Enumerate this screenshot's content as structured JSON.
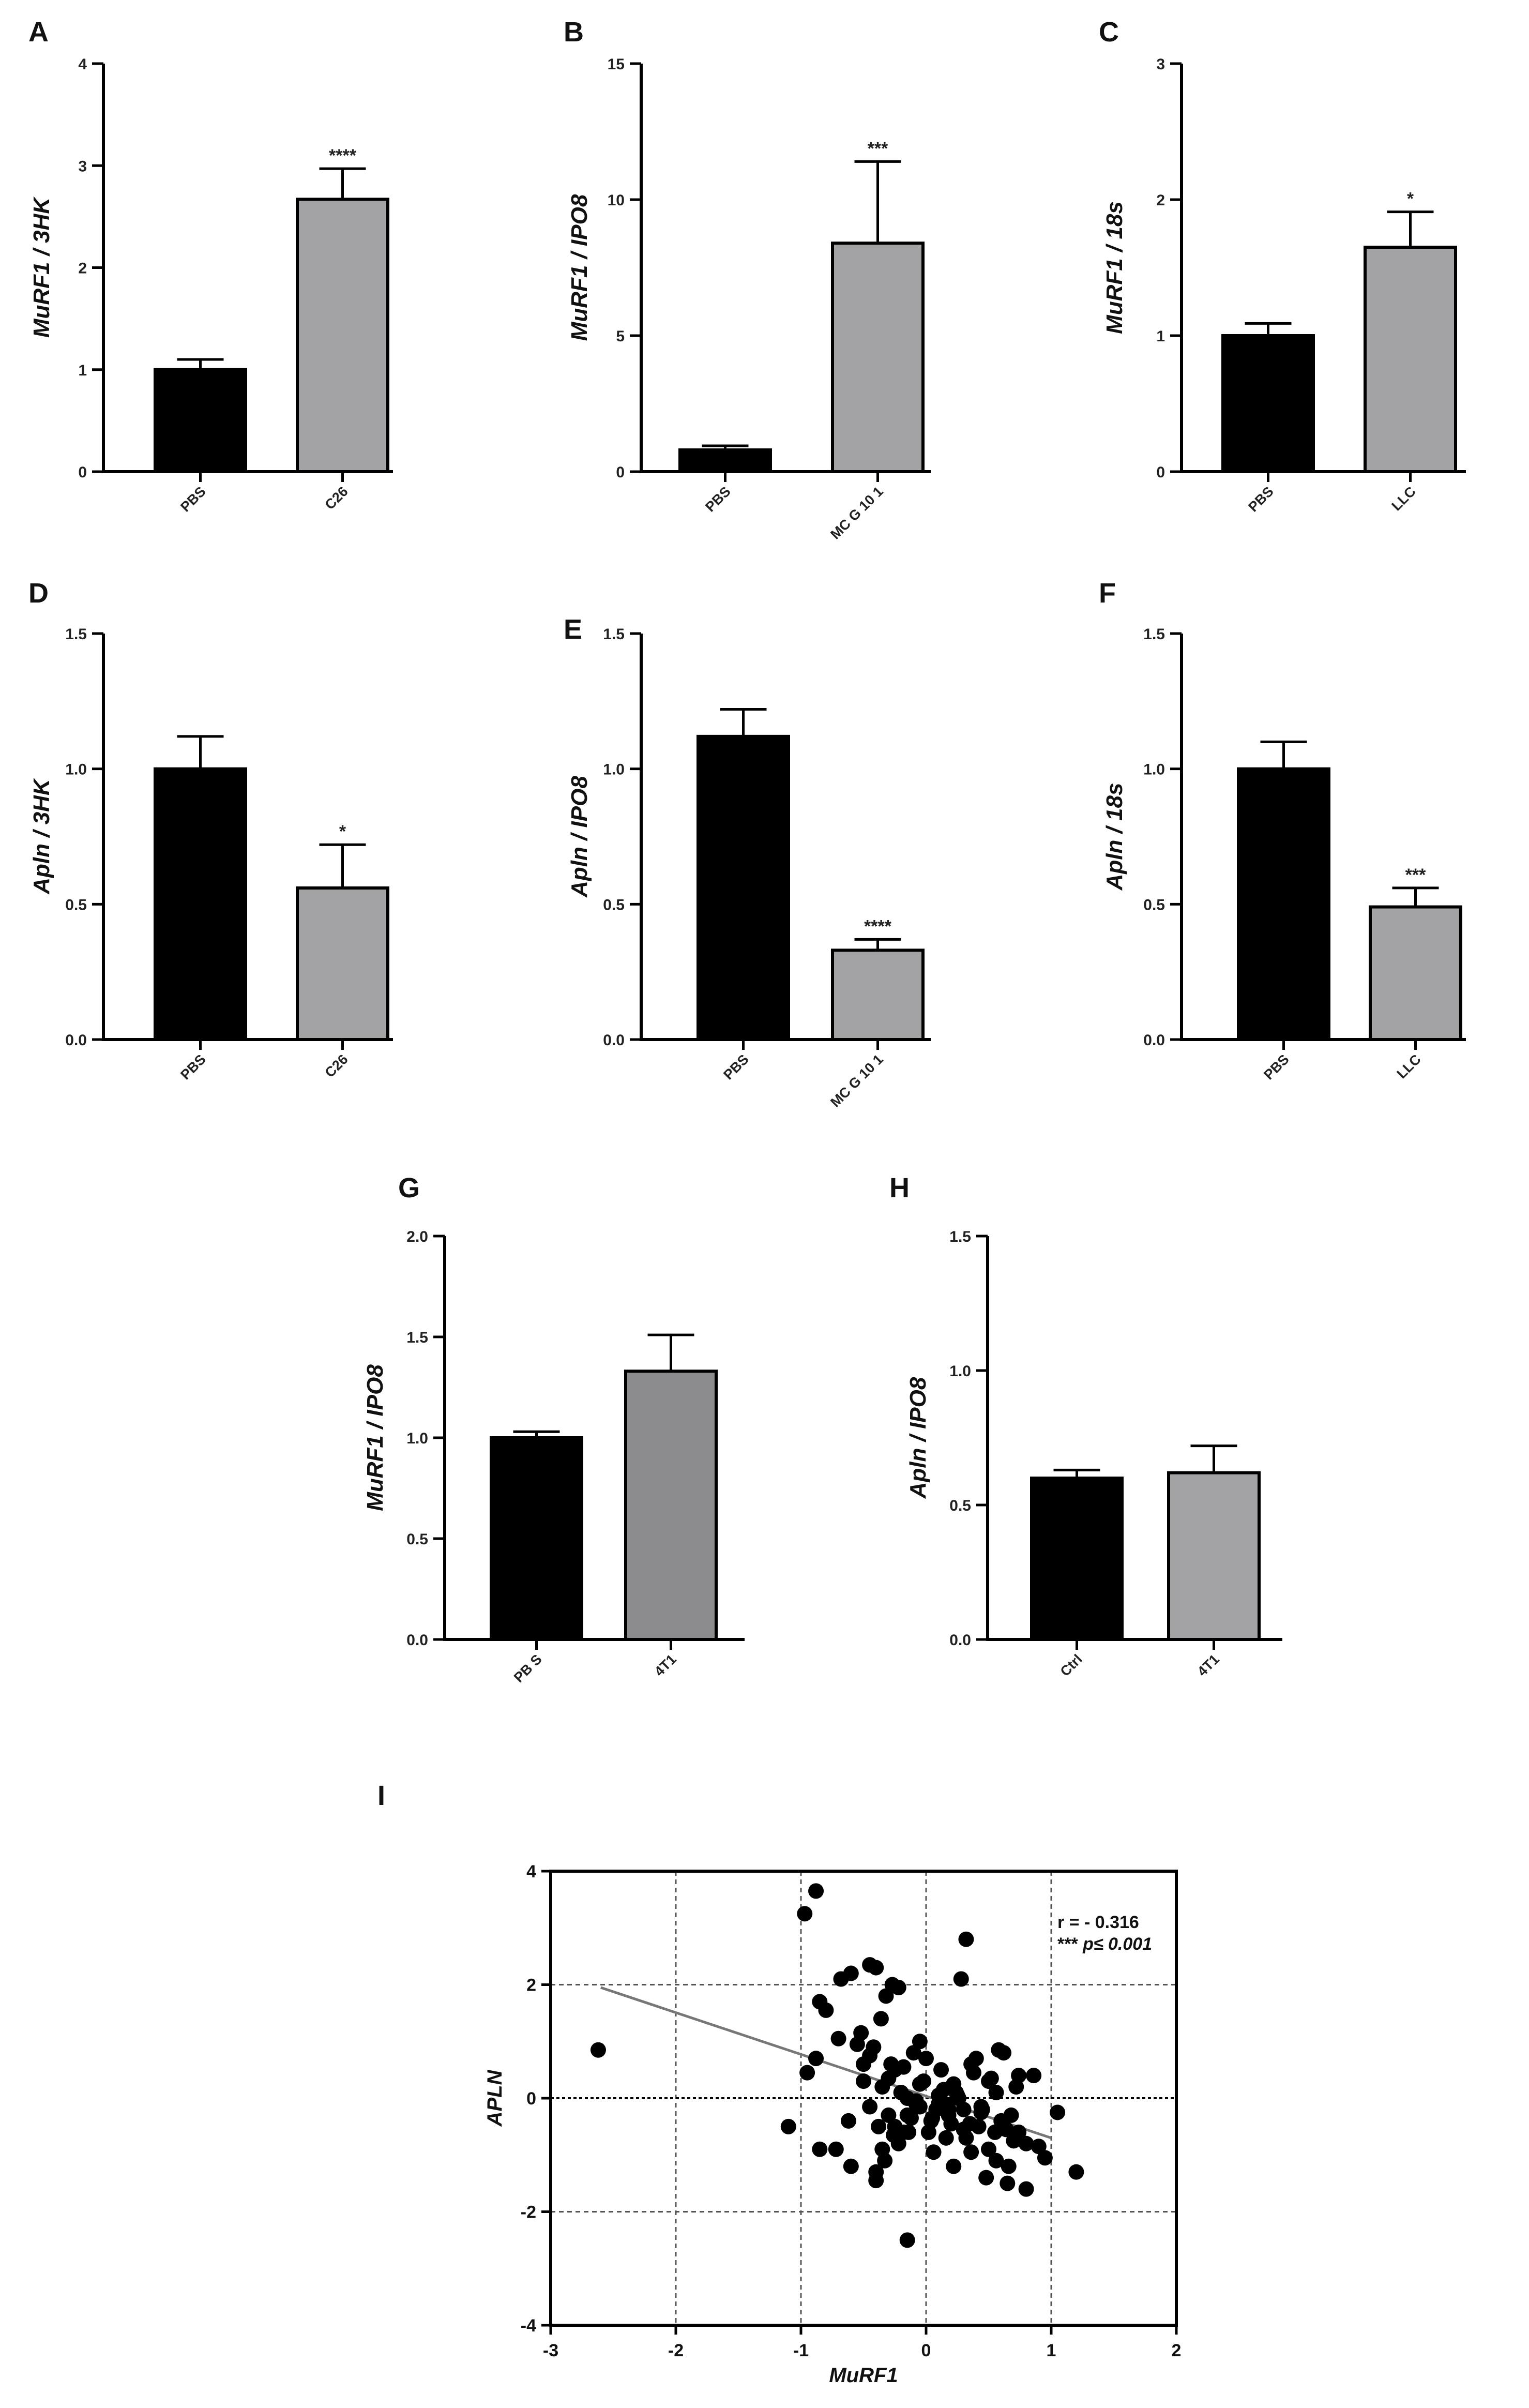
{
  "colors": {
    "ctrl": "#000000",
    "treat": "#a3a3a6",
    "treat_dark": "#8c8c8f"
  },
  "chart_data": [
    {
      "panel": "A",
      "type": "bar",
      "ylabel": "MuRF1 / 3HK",
      "ylim": [
        0,
        4
      ],
      "yticks": [
        "0",
        "1",
        "2",
        "3",
        "4"
      ],
      "ytick_values": [
        0,
        1,
        2,
        3,
        4
      ],
      "categories": [
        "PBS",
        "C26"
      ],
      "values": [
        1.0,
        2.67
      ],
      "errors": [
        0.1,
        0.3
      ],
      "sig": [
        "",
        "****"
      ]
    },
    {
      "panel": "B",
      "type": "bar",
      "ylabel": "MuRF1 / IPO8",
      "ylim": [
        0,
        15
      ],
      "yticks": [
        "0",
        "5",
        "10",
        "15"
      ],
      "ytick_values": [
        0,
        5,
        10,
        15
      ],
      "categories": [
        "PBS",
        "MC G 10 1"
      ],
      "values": [
        0.8,
        8.4
      ],
      "errors": [
        0.15,
        3.0
      ],
      "sig": [
        "",
        "***"
      ]
    },
    {
      "panel": "C",
      "type": "bar",
      "ylabel": "MuRF1 / 18s",
      "ylim": [
        0,
        3
      ],
      "yticks": [
        "0",
        "1",
        "2",
        "3"
      ],
      "ytick_values": [
        0,
        1,
        2,
        3
      ],
      "categories": [
        "PBS",
        "LLC"
      ],
      "values": [
        1.0,
        1.65
      ],
      "errors": [
        0.09,
        0.26
      ],
      "sig": [
        "",
        "*"
      ]
    },
    {
      "panel": "D",
      "type": "bar",
      "ylabel": "Apln / 3HK",
      "ylim": [
        0,
        1.5
      ],
      "yticks": [
        "0.0",
        "0.5",
        "1.0",
        "1.5"
      ],
      "ytick_values": [
        0,
        0.5,
        1.0,
        1.5
      ],
      "categories": [
        "PBS",
        "C26"
      ],
      "values": [
        1.0,
        0.56
      ],
      "errors": [
        0.12,
        0.16
      ],
      "sig": [
        "",
        "*"
      ]
    },
    {
      "panel": "E",
      "type": "bar",
      "ylabel": "Apln / IPO8",
      "ylim": [
        0,
        1.5
      ],
      "yticks": [
        "0.0",
        "0.5",
        "1.0",
        "1.5"
      ],
      "ytick_values": [
        0,
        0.5,
        1.0,
        1.5
      ],
      "categories": [
        "PBS",
        "MC G 10 1"
      ],
      "values": [
        1.12,
        0.33
      ],
      "errors": [
        0.1,
        0.04
      ],
      "sig": [
        "",
        "****"
      ]
    },
    {
      "panel": "F",
      "type": "bar",
      "ylabel": "Apln / 18s",
      "ylim": [
        0,
        1.5
      ],
      "yticks": [
        "0.0",
        "0.5",
        "1.0",
        "1.5"
      ],
      "ytick_values": [
        0,
        0.5,
        1.0,
        1.5
      ],
      "categories": [
        "PBS",
        "LLC"
      ],
      "values": [
        1.0,
        0.49
      ],
      "errors": [
        0.1,
        0.07
      ],
      "sig": [
        "",
        "***"
      ]
    },
    {
      "panel": "G",
      "type": "bar",
      "ylabel": "MuRF1 / IPO8",
      "ylim": [
        0,
        2.0
      ],
      "yticks": [
        "0.0",
        "0.5",
        "1.0",
        "1.5",
        "2.0"
      ],
      "ytick_values": [
        0,
        0.5,
        1.0,
        1.5,
        2.0
      ],
      "categories": [
        "PB S",
        "4T1"
      ],
      "values": [
        1.0,
        1.33
      ],
      "errors": [
        0.03,
        0.18
      ],
      "sig": [
        "",
        ""
      ]
    },
    {
      "panel": "H",
      "type": "bar",
      "ylabel": "Apln / IPO8",
      "ylim": [
        0,
        1.5
      ],
      "yticks": [
        "0.0",
        "0.5",
        "1.0",
        "1.5"
      ],
      "ytick_values": [
        0,
        0.5,
        1.0,
        1.5
      ],
      "categories": [
        "Ctrl",
        "4T1"
      ],
      "values": [
        0.6,
        0.62
      ],
      "errors": [
        0.03,
        0.1
      ],
      "sig": [
        "",
        ""
      ]
    },
    {
      "panel": "I",
      "type": "scatter",
      "xlabel": "MuRF1",
      "ylabel": "APLN",
      "xlim": [
        -3,
        2
      ],
      "ylim": [
        -4,
        4
      ],
      "xticks": [
        "-3",
        "-2",
        "-1",
        "0",
        "1",
        "2"
      ],
      "xtick_values": [
        -3,
        -2,
        -1,
        0,
        1,
        2
      ],
      "yticks": [
        "-4",
        "-2",
        "0",
        "2",
        "4"
      ],
      "ytick_values": [
        -4,
        -2,
        0,
        2,
        4
      ],
      "grid": true,
      "annotation_r": "r = - 0.316",
      "annotation_p_stars": "***",
      "annotation_p": "p≤ 0.001",
      "fit_line": {
        "x": [
          -2.6,
          1.0
        ],
        "y": [
          1.95,
          -0.7
        ]
      },
      "points": {
        "x": [
          -2.62,
          -1.1,
          -0.97,
          -0.88,
          -0.85,
          -0.8,
          -0.68,
          -0.6,
          -0.52,
          -0.45,
          -0.4,
          -0.32,
          -0.27,
          -0.22,
          -0.15,
          -0.1,
          0.32,
          0.28,
          -0.36,
          -0.05,
          0.18,
          -0.95,
          -0.88,
          -0.72,
          -0.6,
          -0.5,
          -0.42,
          -0.35,
          -0.3,
          -0.25,
          -0.2,
          -0.14,
          -0.08,
          -0.02,
          0.04,
          0.1,
          0.16,
          0.22,
          0.3,
          0.36,
          0.42,
          0.5,
          0.56,
          0.62,
          0.68,
          0.74,
          0.8,
          0.86,
          -0.7,
          -0.55,
          -0.45,
          -0.38,
          -0.3,
          -0.22,
          -0.15,
          -0.08,
          0.0,
          0.08,
          0.14,
          0.2,
          0.26,
          0.32,
          0.38,
          0.44,
          0.5,
          0.56,
          0.64,
          0.72,
          0.8,
          -0.62,
          -0.5,
          -0.4,
          -0.33,
          -0.26,
          -0.18,
          -0.12,
          -0.05,
          0.02,
          0.1,
          0.18,
          0.24,
          0.3,
          0.36,
          0.44,
          0.52,
          0.6,
          0.66,
          0.74,
          0.95,
          1.05,
          1.2,
          0.9,
          -0.35,
          -0.25,
          -0.15,
          -0.05,
          0.05,
          0.15,
          0.25,
          0.35,
          0.45,
          0.55,
          0.65,
          -0.45,
          -0.28,
          0.12,
          0.4,
          0.58,
          -0.85,
          -0.18,
          0.06,
          0.22,
          0.48,
          0.7,
          -0.4
        ],
        "y": [
          0.85,
          -0.5,
          3.25,
          3.65,
          1.7,
          1.55,
          2.1,
          2.2,
          1.15,
          2.35,
          2.3,
          1.8,
          2.0,
          1.95,
          -2.5,
          0.8,
          2.8,
          2.1,
          1.4,
          1.0,
          -0.2,
          0.45,
          0.7,
          -0.9,
          -1.2,
          0.6,
          0.9,
          0.2,
          -0.3,
          0.5,
          0.1,
          -0.6,
          -0.1,
          0.3,
          -0.4,
          0.05,
          -0.7,
          0.25,
          -0.2,
          0.6,
          -0.5,
          -0.9,
          0.1,
          0.8,
          -0.3,
          0.4,
          -1.6,
          0.4,
          1.05,
          0.95,
          -0.15,
          -0.5,
          0.35,
          -0.8,
          -0.3,
          -0.05,
          0.7,
          -0.2,
          0.15,
          -0.45,
          0.0,
          -0.7,
          0.45,
          -0.25,
          0.3,
          -1.1,
          -0.55,
          0.2,
          -0.8,
          -0.4,
          0.3,
          -1.3,
          -1.1,
          -0.65,
          0.55,
          -0.35,
          0.25,
          -0.6,
          -0.1,
          -0.3,
          0.1,
          -0.55,
          -0.95,
          -0.15,
          0.35,
          -0.4,
          -1.2,
          -0.6,
          -1.05,
          -0.25,
          -1.3,
          -0.85,
          -0.9,
          -0.5,
          0.0,
          -0.15,
          -0.35,
          -0.1,
          0.05,
          -0.45,
          -0.2,
          -0.6,
          -1.5,
          0.75,
          0.6,
          0.5,
          0.7,
          0.85,
          -0.9,
          -0.6,
          -0.95,
          -1.2,
          -1.4,
          -0.75,
          -1.45
        ]
      }
    }
  ]
}
